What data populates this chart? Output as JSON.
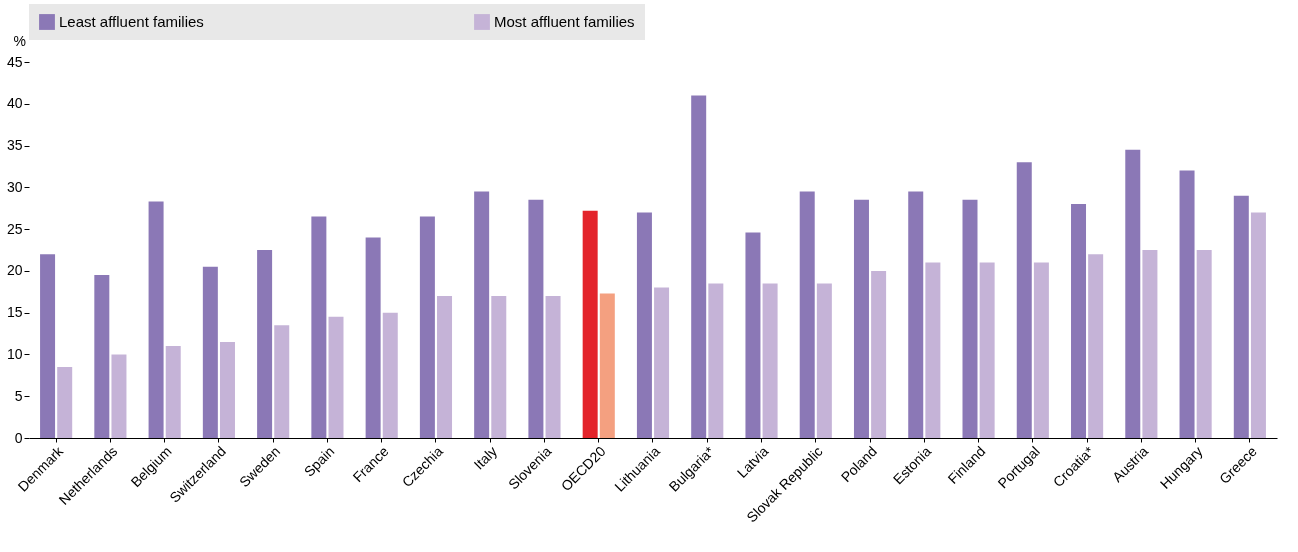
{
  "chart_data": {
    "type": "bar",
    "ylabel": "%",
    "categories": [
      "Denmark",
      "Netherlands",
      "Belgium",
      "Switzerland",
      "Sweden",
      "Spain",
      "France",
      "Czechia",
      "Italy",
      "Slovenia",
      "OECD20",
      "Lithuania",
      "Bulgaria*",
      "Latvia",
      "Slovak Republic",
      "Poland",
      "Estonia",
      "Finland",
      "Portugal",
      "Croatia*",
      "Austria",
      "Hungary",
      "Greece"
    ],
    "series": [
      {
        "name": "Least affluent families",
        "color": "#8b78b6",
        "colors": [
          "#8b78b6",
          "#8b78b6",
          "#8b78b6",
          "#8b78b6",
          "#8b78b6",
          "#8b78b6",
          "#8b78b6",
          "#8b78b6",
          "#8b78b6",
          "#8b78b6",
          "#e3242b",
          "#8b78b6",
          "#8b78b6",
          "#8b78b6",
          "#8b78b6",
          "#8b78b6",
          "#8b78b6",
          "#8b78b6",
          "#8b78b6",
          "#8b78b6",
          "#8b78b6",
          "#8b78b6",
          "#8b78b6"
        ],
        "values": [
          22,
          19.5,
          28.3,
          20.5,
          22.5,
          26.5,
          24,
          26.5,
          29.5,
          28.5,
          27.2,
          27,
          41,
          24.6,
          29.5,
          28.5,
          29.5,
          28.5,
          33,
          28,
          34.5,
          32,
          29
        ]
      },
      {
        "name": "Most affluent families",
        "color": "#c5b3d7",
        "colors": [
          "#c5b3d7",
          "#c5b3d7",
          "#c5b3d7",
          "#c5b3d7",
          "#c5b3d7",
          "#c5b3d7",
          "#c5b3d7",
          "#c5b3d7",
          "#c5b3d7",
          "#c5b3d7",
          "#f4a080",
          "#c5b3d7",
          "#c5b3d7",
          "#c5b3d7",
          "#c5b3d7",
          "#c5b3d7",
          "#c5b3d7",
          "#c5b3d7",
          "#c5b3d7",
          "#c5b3d7",
          "#c5b3d7",
          "#c5b3d7",
          "#c5b3d7"
        ],
        "values": [
          8.5,
          10,
          11,
          11.5,
          13.5,
          14.5,
          15,
          17,
          17,
          17,
          17.3,
          18,
          18.5,
          18.5,
          18.5,
          20,
          21,
          21,
          21,
          22,
          22.5,
          22.5,
          27
        ]
      }
    ],
    "ylim": [
      0,
      45
    ],
    "yticks": [
      0,
      5,
      10,
      15,
      20,
      25,
      30,
      35,
      40,
      45
    ],
    "grid": false,
    "legend": "top"
  }
}
